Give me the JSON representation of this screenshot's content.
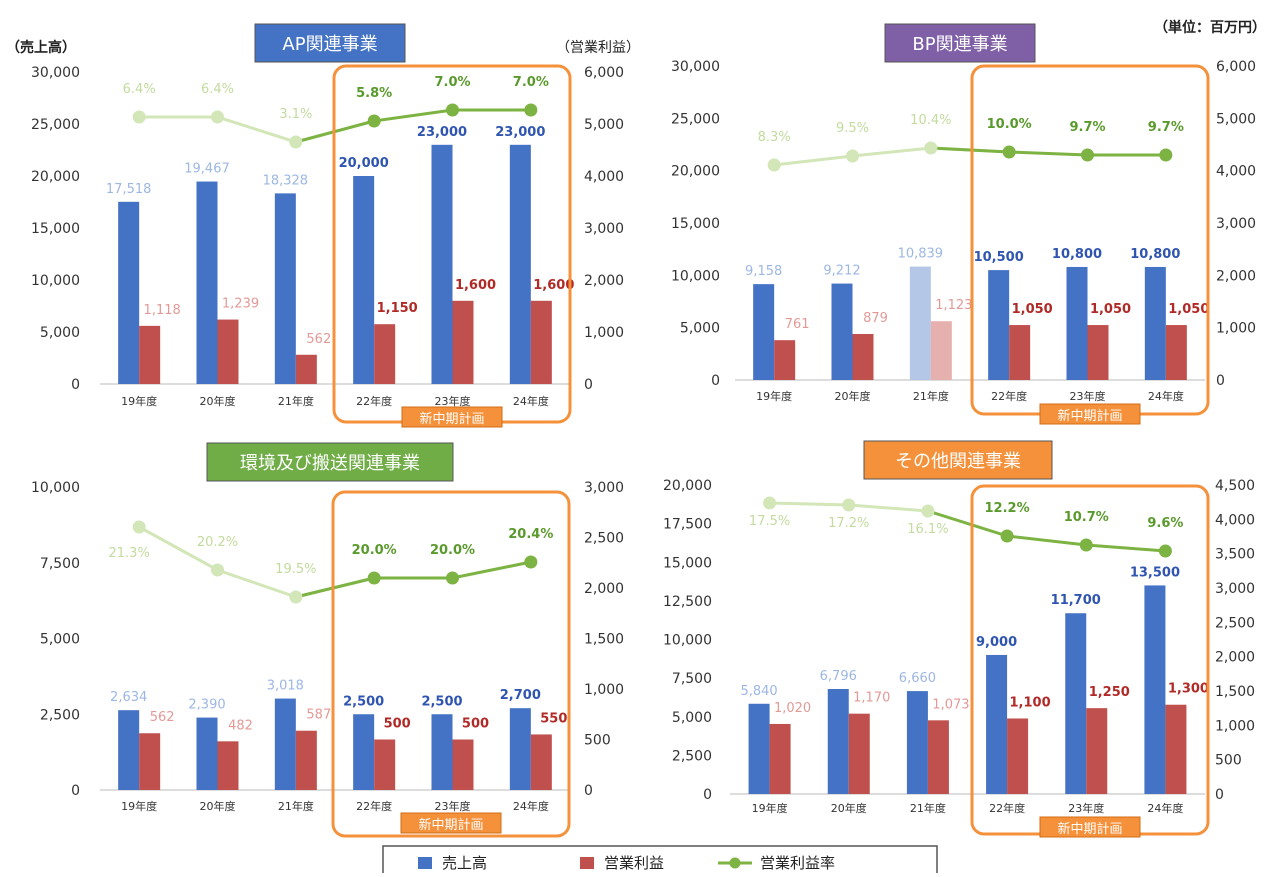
{
  "unit_note": "（単位：百万円）",
  "axis_label_left": "（売上高）",
  "axis_label_right": "（営業利益）",
  "plan_label": "新中期計画",
  "legend": {
    "sales": "売上高",
    "profit": "営業利益",
    "margin": "営業利益率"
  },
  "colors": {
    "sales": "#4472c4",
    "sales_faded": "#b4c7e7",
    "profit": "#c0504d",
    "profit_faded": "#e6b0ae",
    "margin": "#7cb342",
    "margin_faded": "#d3e6b8",
    "plan_frame": "#f4913a",
    "ap_title_bg": "#4472c4",
    "bp_title_bg": "#7f5fa6",
    "env_title_bg": "#70ad47",
    "other_title_bg": "#f4913a",
    "sales_label_plan": "#2f55b0",
    "profit_label_plan": "#b02a27"
  },
  "chart_data": [
    {
      "type": "bar",
      "title": "AP関連事業",
      "categories": [
        "19年度",
        "20年度",
        "21年度",
        "22年度",
        "23年度",
        "24年度"
      ],
      "series": [
        {
          "name": "売上高",
          "axis": "left",
          "values": [
            17518,
            19467,
            18328,
            20000,
            23000,
            23000
          ],
          "labels": [
            "17,518",
            "19,467",
            "18,328",
            "20,000",
            "23,000",
            "23,000"
          ]
        },
        {
          "name": "営業利益",
          "axis": "right",
          "values": [
            1118,
            1239,
            562,
            1150,
            1600,
            1600
          ],
          "labels": [
            "1,118",
            "1,239",
            "562",
            "1,150",
            "1,600",
            "1,600"
          ]
        },
        {
          "name": "営業利益率",
          "type": "line",
          "values": [
            6.4,
            6.4,
            3.1,
            5.8,
            7.0,
            7.0
          ],
          "labels": [
            "6.4%",
            "6.4%",
            "3.1%",
            "5.8%",
            "7.0%",
            "7.0%"
          ]
        }
      ],
      "ylim_left": [
        0,
        30000
      ],
      "ylim_right": [
        0,
        6000
      ],
      "left_ticks": [
        "30,000",
        "25,000",
        "20,000",
        "15,000",
        "10,000",
        "5,000",
        "0"
      ],
      "right_ticks": [
        "6,000",
        "5,000",
        "4,000",
        "3,000",
        "2,000",
        "1,000",
        "0"
      ],
      "plan_range": [
        3,
        5
      ]
    },
    {
      "type": "bar",
      "title": "BP関連事業",
      "categories": [
        "19年度",
        "20年度",
        "21年度",
        "22年度",
        "23年度",
        "24年度"
      ],
      "series": [
        {
          "name": "売上高",
          "axis": "left",
          "values": [
            9158,
            9212,
            10839,
            10500,
            10800,
            10800
          ],
          "labels": [
            "9,158",
            "9,212",
            "10,839",
            "10,500",
            "10,800",
            "10,800"
          ]
        },
        {
          "name": "営業利益",
          "axis": "right",
          "values": [
            761,
            879,
            1123,
            1050,
            1050,
            1050
          ],
          "labels": [
            "761",
            "879",
            "1,123",
            "1,050",
            "1,050",
            "1,050"
          ]
        },
        {
          "name": "営業利益率",
          "type": "line",
          "values": [
            8.3,
            9.5,
            10.4,
            10.0,
            9.7,
            9.7
          ],
          "labels": [
            "8.3%",
            "9.5%",
            "10.4%",
            "10.0%",
            "9.7%",
            "9.7%"
          ]
        }
      ],
      "ylim_left": [
        0,
        30000
      ],
      "ylim_right": [
        0,
        6000
      ],
      "left_ticks": [
        "30,000",
        "25,000",
        "20,000",
        "15,000",
        "10,000",
        "5,000",
        "0"
      ],
      "right_ticks": [
        "6,000",
        "5,000",
        "4,000",
        "3,000",
        "2,000",
        "1,000",
        "0"
      ],
      "plan_range": [
        3,
        5
      ]
    },
    {
      "type": "bar",
      "title": "環境及び搬送関連事業",
      "categories": [
        "19年度",
        "20年度",
        "21年度",
        "22年度",
        "23年度",
        "24年度"
      ],
      "series": [
        {
          "name": "売上高",
          "axis": "left",
          "values": [
            2634,
            2390,
            3018,
            2500,
            2500,
            2700
          ],
          "labels": [
            "2,634",
            "2,390",
            "3,018",
            "2,500",
            "2,500",
            "2,700"
          ]
        },
        {
          "name": "営業利益",
          "axis": "right",
          "values": [
            562,
            482,
            587,
            500,
            500,
            550
          ],
          "labels": [
            "562",
            "482",
            "587",
            "500",
            "500",
            "550"
          ]
        },
        {
          "name": "営業利益率",
          "type": "line",
          "values": [
            21.3,
            20.2,
            19.5,
            20.0,
            20.0,
            20.4
          ],
          "labels": [
            "21.3%",
            "20.2%",
            "19.5%",
            "20.0%",
            "20.0%",
            "20.4%"
          ]
        }
      ],
      "ylim_left": [
        0,
        10000
      ],
      "ylim_right": [
        0,
        3000
      ],
      "left_ticks": [
        "10,000",
        "7,500",
        "5,000",
        "2,500",
        "0"
      ],
      "right_ticks": [
        "3,000",
        "2,500",
        "2,000",
        "1,500",
        "1,000",
        "500",
        "0"
      ],
      "plan_range": [
        3,
        5
      ]
    },
    {
      "type": "bar",
      "title": "その他関連事業",
      "categories": [
        "19年度",
        "20年度",
        "21年度",
        "22年度",
        "23年度",
        "24年度"
      ],
      "series": [
        {
          "name": "売上高",
          "axis": "left",
          "values": [
            5840,
            6796,
            6660,
            9000,
            11700,
            13500
          ],
          "labels": [
            "5,840",
            "6,796",
            "6,660",
            "9,000",
            "11,700",
            "13,500"
          ]
        },
        {
          "name": "営業利益",
          "axis": "right",
          "values": [
            1020,
            1170,
            1073,
            1100,
            1250,
            1300
          ],
          "labels": [
            "1,020",
            "1,170",
            "1,073",
            "1,100",
            "1,250",
            "1,300"
          ]
        },
        {
          "name": "営業利益率",
          "type": "line",
          "values": [
            17.5,
            17.2,
            16.1,
            12.2,
            10.7,
            9.6
          ],
          "labels": [
            "17.5%",
            "17.2%",
            "16.1%",
            "12.2%",
            "10.7%",
            "9.6%"
          ]
        }
      ],
      "ylim_left": [
        0,
        20000
      ],
      "ylim_right": [
        0,
        4500
      ],
      "left_ticks": [
        "20,000",
        "17,500",
        "15,000",
        "12,500",
        "10,000",
        "7,500",
        "5,000",
        "2,500",
        "0"
      ],
      "right_ticks": [
        "4,500",
        "4,000",
        "3,500",
        "3,000",
        "2,500",
        "2,000",
        "1,500",
        "1,000",
        "500",
        "0"
      ],
      "plan_range": [
        3,
        5
      ]
    }
  ]
}
